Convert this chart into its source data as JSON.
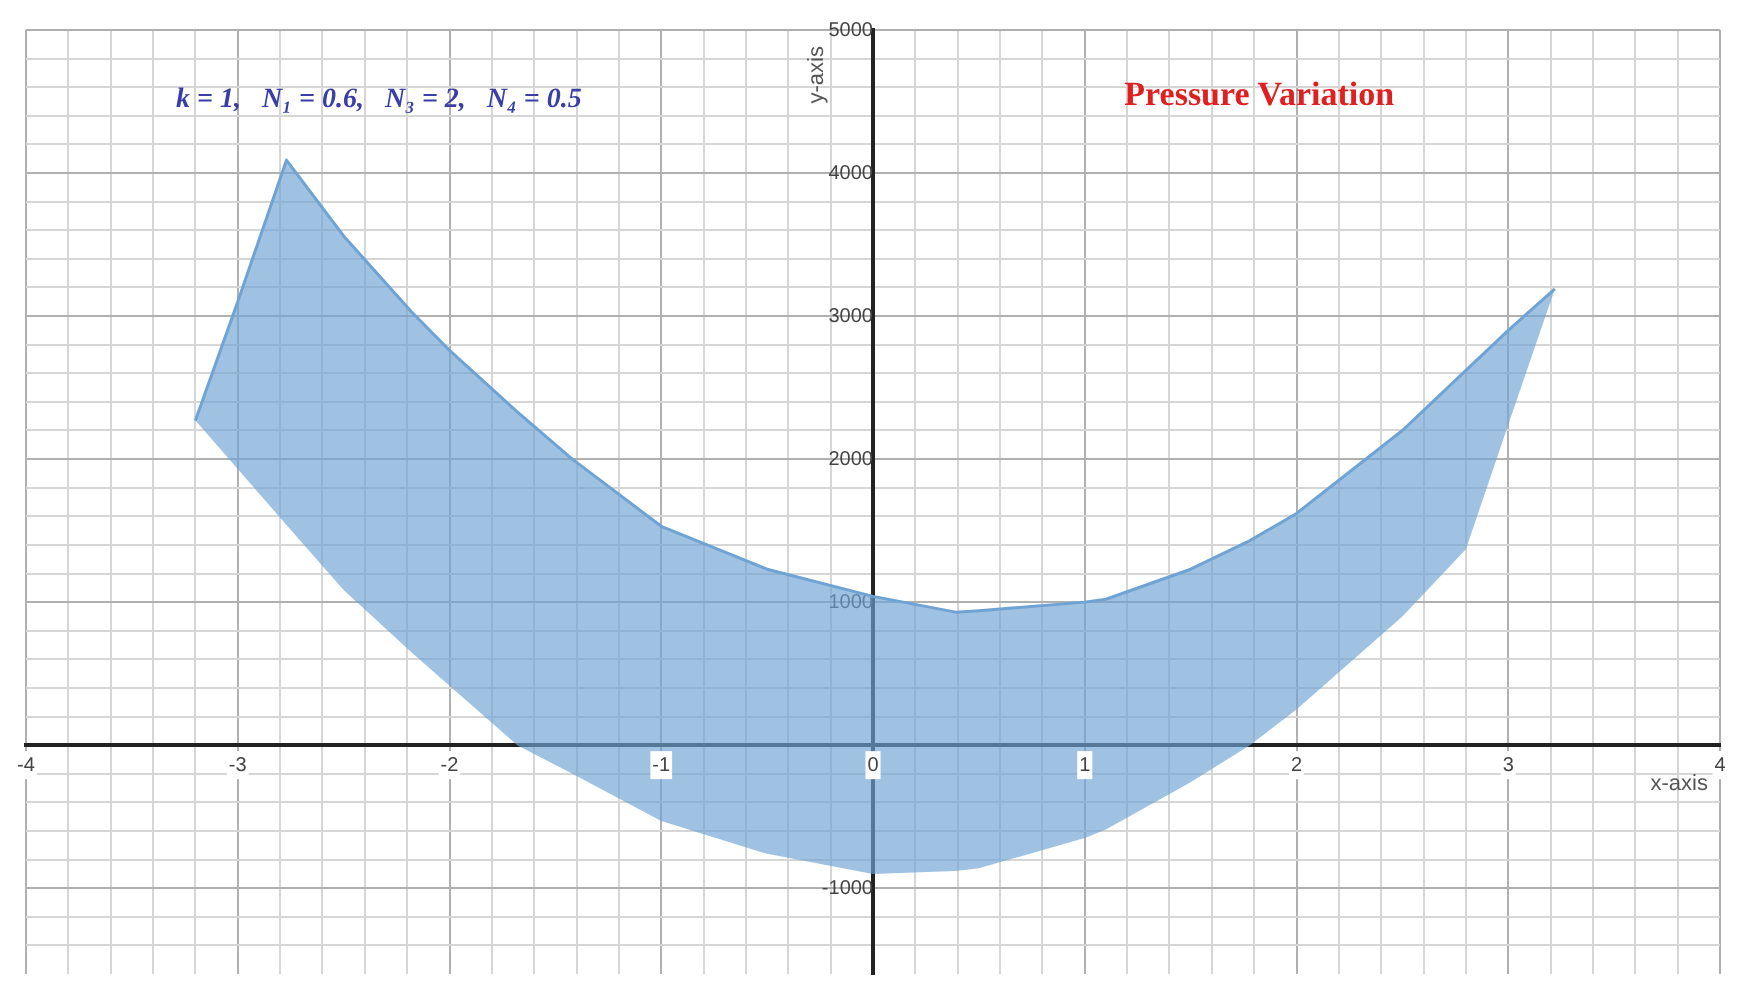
{
  "chart_data": {
    "type": "line",
    "title": "Pressure Variation",
    "xlabel": "x-axis",
    "ylabel": "y-axis",
    "annotations": [
      "k = 1,   N₁ = 0.6,   N₃ = 2,   N₄ = 0.5"
    ],
    "series": [
      {
        "color": "#6fa3d4",
        "x": [
          -3.2,
          -3.0,
          -2.77,
          -2.5,
          -2.18,
          -2.0,
          -1.68,
          -1.42,
          -1.0,
          -0.5,
          0,
          0.39,
          0.5,
          1.0,
          1.1,
          1.5,
          1.78,
          2.0,
          2.5,
          2.8,
          3.0,
          3.22
        ],
        "values": [
          2270,
          3100,
          4090,
          3560,
          3030,
          2760,
          2330,
          2000,
          1530,
          1230,
          1040,
          930,
          940,
          1000,
          1020,
          1230,
          1430,
          1620,
          2200,
          2620,
          2900,
          3190
        ],
        "upper": [
          2270,
          3100,
          4090,
          3560,
          3030,
          2760,
          2330,
          2000,
          1530,
          1230,
          1040,
          930,
          940,
          1000,
          1020,
          1230,
          1430,
          1620,
          2200,
          2620,
          2900,
          3190
        ],
        "lower": [
          2270,
          1930,
          1540,
          1085,
          650,
          415,
          0,
          -200,
          -530,
          -760,
          -900,
          -880,
          -860,
          -650,
          -590,
          -260,
          0,
          250,
          900,
          1370,
          2240,
          3190
        ]
      }
    ],
    "xlim": [
      -4,
      4
    ],
    "ylim": [
      -1600,
      5000
    ],
    "xticks": [
      -4,
      {
        "value": -3.8,
        "label": null
      },
      {
        "value": -3.6,
        "label": null
      },
      {
        "value": -3.4,
        "label": null
      },
      {
        "value": -3.2,
        "label": null
      },
      -3,
      {
        "value": -2.8,
        "label": null
      },
      {
        "value": -2.6,
        "label": null
      },
      {
        "value": -2.4,
        "label": null
      },
      {
        "value": -2.2,
        "label": null
      },
      -2,
      {
        "value": -1.8,
        "label": null
      },
      {
        "value": -1.6,
        "label": null
      },
      {
        "value": -1.4,
        "label": null
      },
      {
        "value": -1.2,
        "label": null
      },
      -1,
      {
        "value": -0.8,
        "label": null
      },
      {
        "value": -0.6,
        "label": null
      },
      {
        "value": -0.4,
        "label": null
      },
      {
        "value": -0.2,
        "label": null
      },
      0,
      {
        "value": 0.2,
        "label": null
      },
      {
        "value": 0.4,
        "label": null
      },
      {
        "value": 0.6,
        "label": null
      },
      {
        "value": 0.8,
        "label": null
      },
      1,
      {
        "value": 1.2,
        "label": null
      },
      {
        "value": 1.4,
        "label": null
      },
      {
        "value": 1.6,
        "label": null
      },
      {
        "value": 1.8,
        "label": null
      },
      2,
      {
        "value": 2.2,
        "label": null
      },
      {
        "value": 2.4,
        "label": null
      },
      {
        "value": 2.6,
        "label": null
      },
      {
        "value": 2.8,
        "label": null
      },
      3,
      {
        "value": 3.2,
        "label": null
      },
      {
        "value": 3.4,
        "label": null
      },
      {
        "value": 3.6,
        "label": null
      },
      {
        "value": 3.8,
        "label": null
      },
      4
    ],
    "yticks": [
      {
        "value": -1400,
        "label": null
      },
      {
        "value": -1200,
        "label": null
      },
      -1000,
      {
        "value": -800,
        "label": null
      },
      {
        "value": -600,
        "label": null
      },
      {
        "value": -400,
        "label": null
      },
      {
        "value": -200,
        "label": null
      },
      {
        "value": 0,
        "label": null
      },
      {
        "value": 200,
        "label": null
      },
      {
        "value": 400,
        "label": null
      },
      {
        "value": 600,
        "label": null
      },
      {
        "value": 800,
        "label": null
      },
      1000,
      {
        "value": 1200,
        "label": null
      },
      {
        "value": 1400,
        "label": null
      },
      {
        "value": 1600,
        "label": null
      },
      {
        "value": 1800,
        "label": null
      },
      2000,
      {
        "value": 2200,
        "label": null
      },
      {
        "value": 2400,
        "label": null
      },
      {
        "value": 2600,
        "label": null
      },
      {
        "value": 2800,
        "label": null
      },
      3000,
      {
        "value": 3200,
        "label": null
      },
      {
        "value": 3400,
        "label": null
      },
      {
        "value": 3600,
        "label": null
      },
      {
        "value": 3800,
        "label": null
      },
      4000,
      {
        "value": 4200,
        "label": null
      },
      {
        "value": 4400,
        "label": null
      },
      {
        "value": 4600,
        "label": null
      },
      {
        "value": 4800,
        "label": null
      },
      5000
    ],
    "grid": true,
    "legend": false,
    "marker": "none",
    "line_style": "solid"
  }
}
